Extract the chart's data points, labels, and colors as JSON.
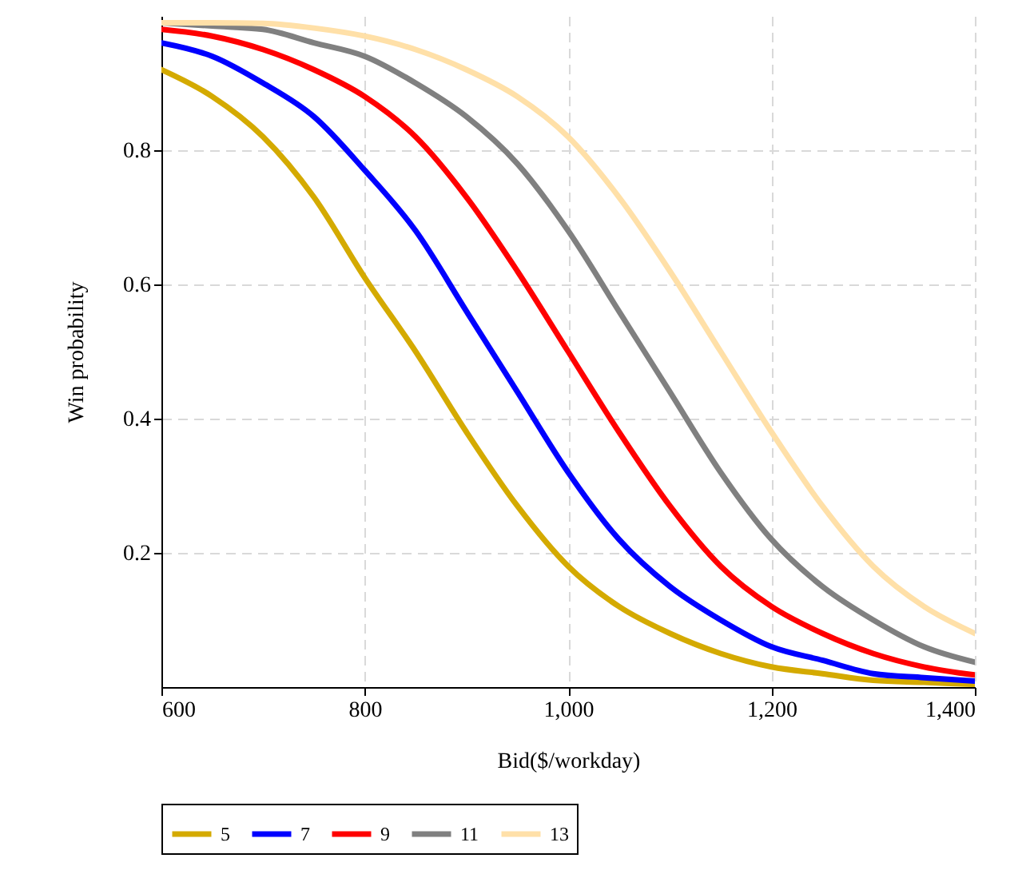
{
  "chart_data": {
    "type": "line",
    "xlabel": "Bid($/workday)",
    "ylabel": "Win probability",
    "x": [
      600,
      650,
      700,
      750,
      800,
      850,
      900,
      950,
      1000,
      1050,
      1100,
      1150,
      1200,
      1250,
      1300,
      1350,
      1400
    ],
    "xlim": [
      600,
      1400
    ],
    "xticks": [
      600,
      800,
      {
        "value": 1000,
        "label": "1,000"
      },
      {
        "value": 1200,
        "label": "1,200"
      },
      {
        "value": 1400,
        "label": "1,400"
      }
    ],
    "ylim": [
      0,
      1
    ],
    "yticks": [
      0.2,
      0.4,
      0.6,
      0.8
    ],
    "grid": true,
    "legend": "bottom",
    "marker": "none",
    "line_style": "solid",
    "series": [
      {
        "name": "5",
        "color": "#d4aa00",
        "values": [
          0.92,
          0.88,
          0.82,
          0.73,
          0.61,
          0.5,
          0.38,
          0.27,
          0.18,
          0.12,
          0.08,
          0.05,
          0.03,
          0.02,
          0.01,
          0.007,
          0.004
        ]
      },
      {
        "name": "7",
        "color": "#0000ff",
        "values": [
          0.96,
          0.94,
          0.9,
          0.85,
          0.77,
          0.68,
          0.56,
          0.44,
          0.32,
          0.22,
          0.15,
          0.1,
          0.06,
          0.04,
          0.02,
          0.014,
          0.009
        ]
      },
      {
        "name": "9",
        "color": "#ff0000",
        "values": [
          0.98,
          0.97,
          0.95,
          0.92,
          0.88,
          0.82,
          0.73,
          0.62,
          0.5,
          0.38,
          0.27,
          0.18,
          0.12,
          0.08,
          0.05,
          0.03,
          0.018
        ]
      },
      {
        "name": "11",
        "color": "#808080",
        "values": [
          0.99,
          0.985,
          0.98,
          0.96,
          0.94,
          0.9,
          0.85,
          0.78,
          0.68,
          0.56,
          0.44,
          0.32,
          0.22,
          0.15,
          0.1,
          0.06,
          0.037
        ]
      },
      {
        "name": "13",
        "color": "#ffe0a8",
        "values": [
          0.99,
          0.99,
          0.989,
          0.982,
          0.97,
          0.95,
          0.92,
          0.88,
          0.82,
          0.73,
          0.62,
          0.5,
          0.38,
          0.27,
          0.18,
          0.12,
          0.08
        ]
      }
    ]
  }
}
